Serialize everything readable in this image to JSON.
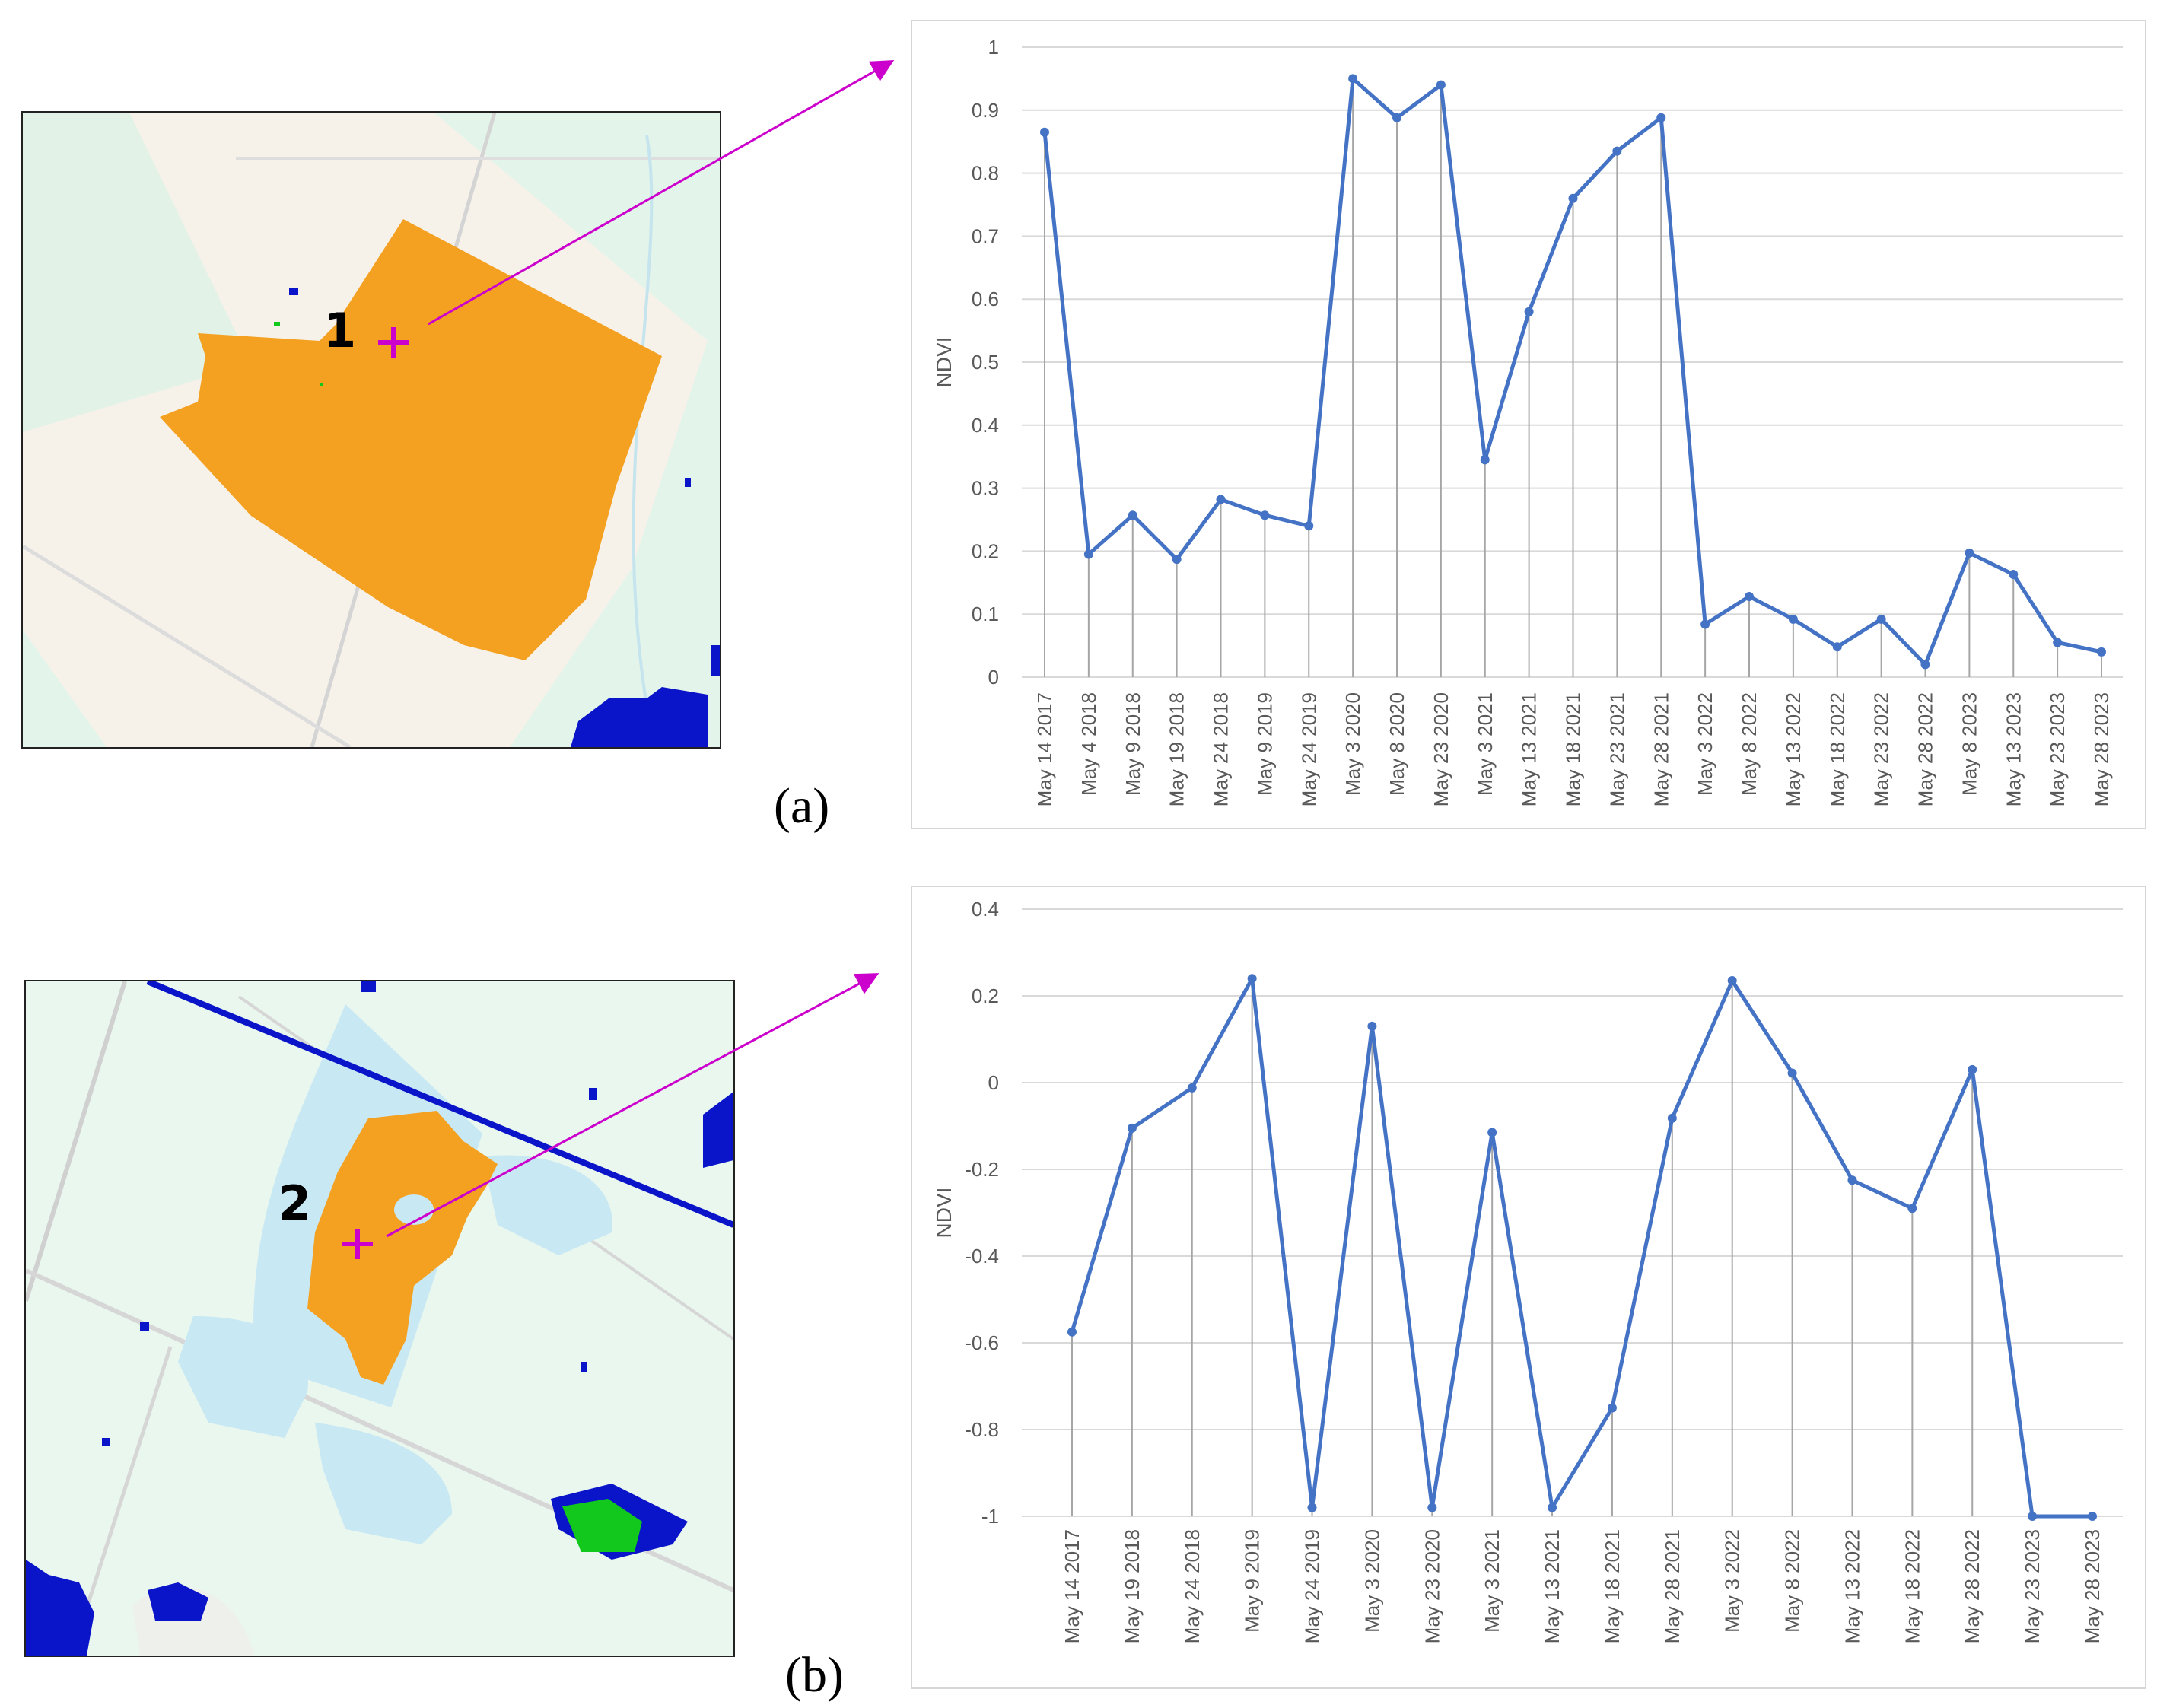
{
  "panels": [
    {
      "label": "(a)",
      "point_label": "1"
    },
    {
      "label": "(b)",
      "point_label": "2"
    }
  ],
  "colors": {
    "line": "#4472C4",
    "grid": "#d9d9d9",
    "drop": "#a6a6a6",
    "axis_text": "#595959",
    "arrow": "#cc00cc",
    "orange": "#f4a020",
    "blue": "#0a14c8",
    "green": "#12c81c"
  },
  "chart_data": [
    {
      "type": "line",
      "ylabel": "NDVI",
      "ylim": [
        0,
        1
      ],
      "yticks": [
        0,
        0.1,
        0.2,
        0.3,
        0.4,
        0.5,
        0.6,
        0.7,
        0.8,
        0.9,
        1
      ],
      "ytick_labels": [
        "0",
        "0.1",
        "0.2",
        "0.3",
        "0.4",
        "0.5",
        "0.6",
        "0.7",
        "0.8",
        "0.9",
        "1"
      ],
      "grid": true,
      "categories": [
        "May 14 2017",
        "May 4 2018",
        "May 9 2018",
        "May 19 2018",
        "May 24 2018",
        "May 9 2019",
        "May 24 2019",
        "May 3 2020",
        "May 8 2020",
        "May 23 2020",
        "May 3 2021",
        "May 13 2021",
        "May 18 2021",
        "May 23 2021",
        "May 28 2021",
        "May 3 2022",
        "May 8 2022",
        "May 13 2022",
        "May 18 2022",
        "May 23 2022",
        "May 28 2022",
        "May 8 2023",
        "May 13 2023",
        "May 23 2023",
        "May 28 2023"
      ],
      "values": [
        0.865,
        0.195,
        0.257,
        0.187,
        0.282,
        0.257,
        0.24,
        0.95,
        0.888,
        0.94,
        0.345,
        0.58,
        0.76,
        0.835,
        0.888,
        0.084,
        0.128,
        0.092,
        0.048,
        0.092,
        0.02,
        0.197,
        0.163,
        0.055,
        0.04
      ]
    },
    {
      "type": "line",
      "ylabel": "NDVI",
      "ylim": [
        -1,
        0.4
      ],
      "yticks": [
        -1,
        -0.8,
        -0.6,
        -0.4,
        -0.2,
        0,
        0.2,
        0.4
      ],
      "ytick_labels": [
        "-1",
        "-0.8",
        "-0.6",
        "-0.4",
        "-0.2",
        "0",
        "0.2",
        "0.4"
      ],
      "grid": true,
      "categories": [
        "May 14 2017",
        "May 19 2018",
        "May 24 2018",
        "May 9 2019",
        "May 24 2019",
        "May 3 2020",
        "May 23 2020",
        "May 3 2021",
        "May 13 2021",
        "May 18 2021",
        "May 28 2021",
        "May 3 2022",
        "May 8 2022",
        "May 13 2022",
        "May 18 2022",
        "May 28 2022",
        "May 23 2023",
        "May 28 2023"
      ],
      "values": [
        -0.575,
        -0.105,
        -0.012,
        0.24,
        -0.98,
        0.13,
        -0.98,
        -0.115,
        -0.98,
        -0.75,
        -0.082,
        0.235,
        0.022,
        -0.225,
        -0.29,
        0.03,
        -1.0,
        -1.0
      ]
    }
  ]
}
